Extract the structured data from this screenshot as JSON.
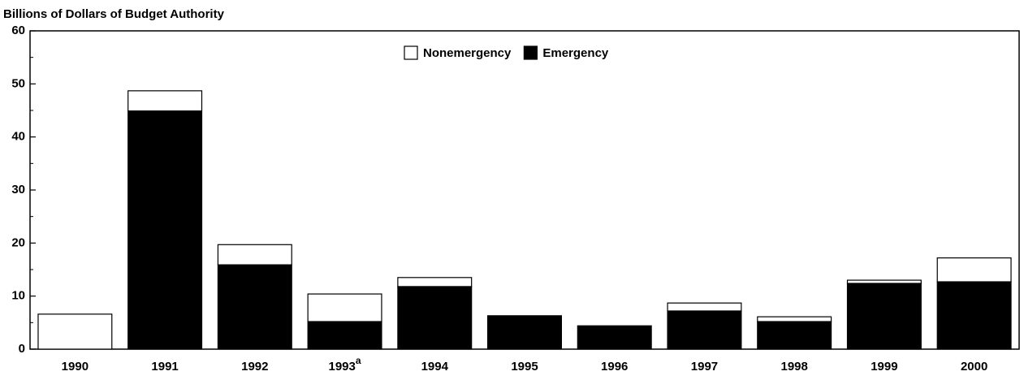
{
  "chart_data": {
    "type": "stacked_bar",
    "title": "Billions of Dollars of Budget Authority",
    "categories": [
      "1990",
      "1991",
      "1992",
      "1993",
      "1994",
      "1995",
      "1996",
      "1997",
      "1998",
      "1999",
      "2000"
    ],
    "category_notes": [
      null,
      null,
      null,
      "a",
      null,
      null,
      null,
      null,
      null,
      null,
      null
    ],
    "series": [
      {
        "name": "Nonemergency",
        "color": "#ffffff",
        "values": [
          6.6,
          3.8,
          3.8,
          5.2,
          1.7,
          0,
          0,
          1.5,
          0.9,
          0.6,
          4.5
        ]
      },
      {
        "name": "Emergency",
        "color": "#000000",
        "values": [
          0,
          44.9,
          15.9,
          5.2,
          11.8,
          6.3,
          4.4,
          7.2,
          5.2,
          12.4,
          12.7
        ]
      }
    ],
    "ylim": [
      0,
      60
    ],
    "yticks": [
      0,
      10,
      20,
      30,
      40,
      50,
      60
    ],
    "yminorticks": [
      5,
      15,
      25,
      35,
      45,
      55
    ],
    "legend": "top"
  }
}
